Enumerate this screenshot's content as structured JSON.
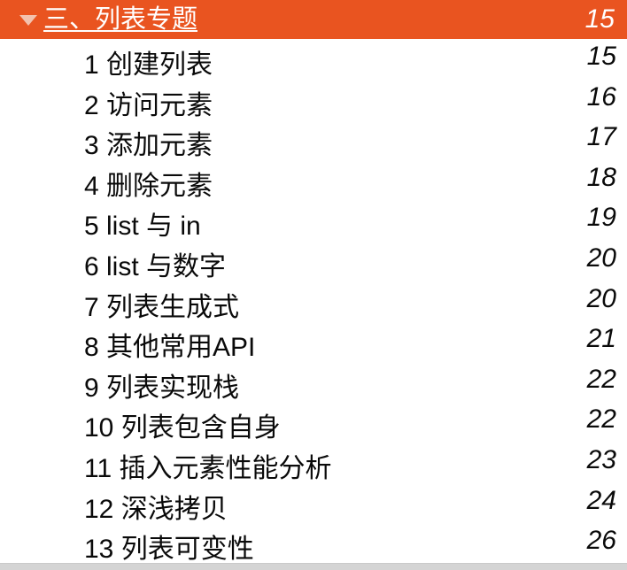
{
  "colors": {
    "accent": "#E95420",
    "expander_triangle": "#F3C2AE",
    "header_text": "#FFFFFF",
    "item_text": "#0A0A0A",
    "bottom_bar": "#D4D4D4"
  },
  "header": {
    "title": "三、列表专题",
    "page": "15",
    "expander_icon": "triangle-down-icon",
    "expanded": true
  },
  "items": [
    {
      "label": "1 创建列表",
      "page": "15"
    },
    {
      "label": "2 访问元素",
      "page": "16"
    },
    {
      "label": "3 添加元素",
      "page": "17"
    },
    {
      "label": "4 删除元素",
      "page": "18"
    },
    {
      "label": "5 list 与 in",
      "page": "19"
    },
    {
      "label": "6 list 与数字",
      "page": "20"
    },
    {
      "label": "7 列表生成式",
      "page": "20"
    },
    {
      "label": "8 其他常用API",
      "page": "21"
    },
    {
      "label": "9 列表实现栈",
      "page": "22"
    },
    {
      "label": "10 列表包含自身",
      "page": "22"
    },
    {
      "label": "11 插入元素性能分析",
      "page": "23"
    },
    {
      "label": "12 深浅拷贝",
      "page": "24"
    },
    {
      "label": "13 列表可变性",
      "page": "26"
    }
  ]
}
